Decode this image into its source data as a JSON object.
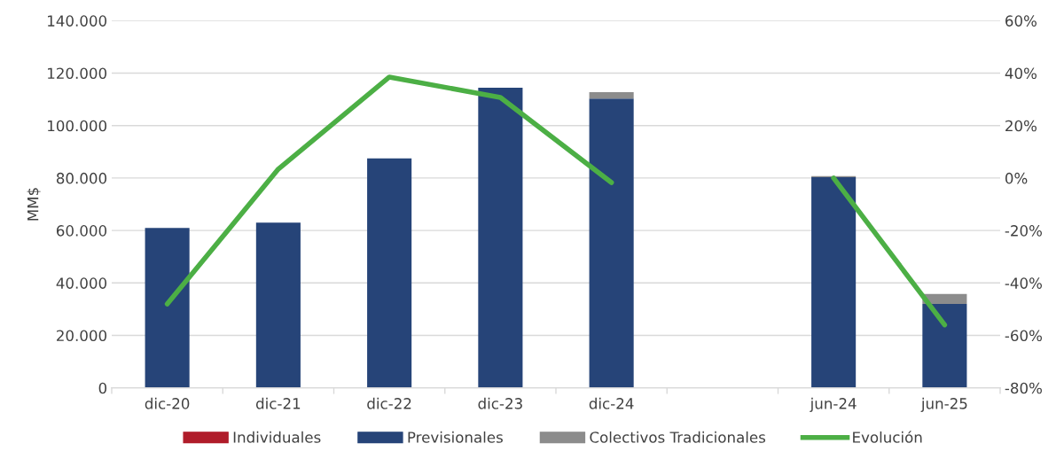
{
  "chart_data": {
    "type": "bar",
    "stacked": true,
    "ylabel": "MM$",
    "categories": [
      "dic-20",
      "dic-21",
      "dic-22",
      "dic-23",
      "dic-24",
      null,
      "jun-24",
      "jun-25"
    ],
    "series": [
      {
        "name": "Individuales",
        "color": "#b01c2a",
        "values": [
          0,
          0,
          0,
          0,
          0,
          null,
          0,
          0
        ]
      },
      {
        "name": "Previsionales",
        "color": "#264478",
        "values": [
          61000,
          63000,
          87500,
          114400,
          110300,
          null,
          80300,
          32000
        ]
      },
      {
        "name": "Colectivos Tradicionales",
        "color": "#8c8c8c",
        "values": [
          0,
          0,
          0,
          0,
          2400,
          null,
          400,
          3800
        ]
      },
      {
        "name": "Evolución",
        "type": "line",
        "axis": "y2",
        "color": "#4caf45",
        "values": [
          -48,
          3.4,
          38.5,
          30.7,
          -1.7,
          null,
          0,
          -56
        ]
      }
    ],
    "ylim": [
      0,
      140000
    ],
    "yticks": [
      {
        "value": 0,
        "label": "0"
      },
      {
        "value": 20000,
        "label": "20.000"
      },
      {
        "value": 40000,
        "label": "40.000"
      },
      {
        "value": 60000,
        "label": "60.000"
      },
      {
        "value": 80000,
        "label": "80.000"
      },
      {
        "value": 100000,
        "label": "100.000"
      },
      {
        "value": 120000,
        "label": "120.000"
      },
      {
        "value": 140000,
        "label": "140.000"
      }
    ],
    "y2lim": [
      -80,
      60
    ],
    "y2ticks": [
      {
        "value": -80,
        "label": "-80%"
      },
      {
        "value": -60,
        "label": "-60%"
      },
      {
        "value": -40,
        "label": "-40%"
      },
      {
        "value": -20,
        "label": "-20%"
      },
      {
        "value": 0,
        "label": "0%"
      },
      {
        "value": 20,
        "label": "20%"
      },
      {
        "value": 40,
        "label": "40%"
      },
      {
        "value": 60,
        "label": "60%"
      }
    ],
    "grid": "y",
    "legend": "bottom",
    "marker": "none",
    "line_style": "solid"
  }
}
